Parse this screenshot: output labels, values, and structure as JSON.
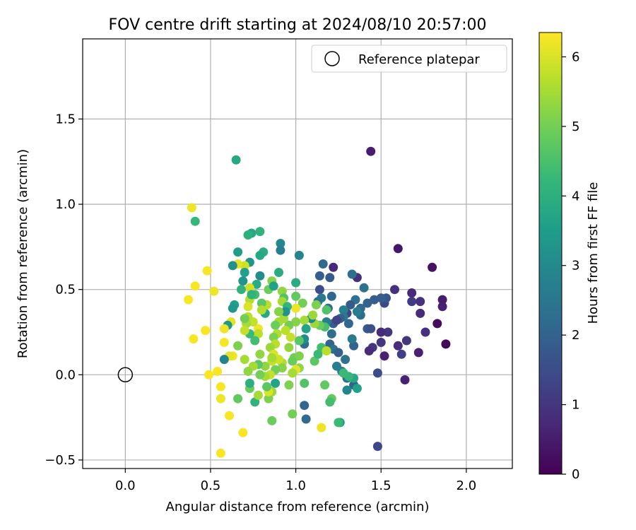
{
  "chart_data": {
    "type": "scatter",
    "title": "FOV centre drift starting at 2024/08/10 20:57:00",
    "xlabel": "Angular distance from reference (arcmin)",
    "ylabel": "Rotation from reference (arcmin)",
    "xlim": [
      -0.25,
      2.27
    ],
    "ylim": [
      -0.55,
      1.97
    ],
    "x_ticks": [
      0.0,
      0.5,
      1.0,
      1.5,
      2.0
    ],
    "x_tick_labels": [
      "0.0",
      "0.5",
      "1.0",
      "1.5",
      "2.0"
    ],
    "y_ticks": [
      -0.5,
      0.0,
      0.5,
      1.0,
      1.5
    ],
    "y_tick_labels": [
      "−0.5",
      "0.0",
      "0.5",
      "1.0",
      "1.5"
    ],
    "grid": true,
    "legend": {
      "placement": "top-right",
      "entries": [
        "Reference platepar"
      ]
    },
    "reference_point": {
      "name": "Reference platepar",
      "x": 0.0,
      "y": 0.0
    },
    "colorbar": {
      "label": "Hours from first FF file",
      "colormap": "viridis",
      "range": [
        0,
        6.35
      ],
      "ticks": [
        0,
        1,
        2,
        3,
        4,
        5,
        6
      ],
      "tick_labels": [
        "0",
        "1",
        "2",
        "3",
        "4",
        "5",
        "6"
      ]
    },
    "points_columns": [
      "x",
      "y",
      "hours"
    ],
    "points": [
      [
        1.44,
        1.31,
        0.5
      ],
      [
        1.6,
        0.74,
        0.4
      ],
      [
        1.8,
        0.63,
        0.3
      ],
      [
        1.83,
        0.3,
        0.2
      ],
      [
        1.88,
        0.18,
        0.1
      ],
      [
        1.86,
        0.44,
        0.5
      ],
      [
        1.86,
        0.4,
        0.6
      ],
      [
        1.76,
        0.25,
        0.9
      ],
      [
        1.72,
        0.13,
        0.6
      ],
      [
        1.73,
        0.36,
        0.8
      ],
      [
        1.73,
        0.43,
        0.9
      ],
      [
        1.68,
        0.48,
        0.8
      ],
      [
        1.68,
        0.43,
        1.1
      ],
      [
        1.64,
        -0.03,
        0.6
      ],
      [
        1.65,
        0.2,
        1.0
      ],
      [
        1.62,
        0.12,
        1.2
      ],
      [
        1.6,
        0.17,
        0.8
      ],
      [
        1.58,
        0.5,
        0.9
      ],
      [
        1.54,
        0.25,
        1.0
      ],
      [
        1.52,
        0.11,
        0.6
      ],
      [
        1.5,
        0.25,
        0.8
      ],
      [
        1.5,
        0.19,
        1.0
      ],
      [
        1.48,
        0.01,
        1.5
      ],
      [
        1.48,
        -0.42,
        1.4
      ],
      [
        1.45,
        0.16,
        1.0
      ],
      [
        1.43,
        0.14,
        0.8
      ],
      [
        1.42,
        0.27,
        1.8
      ],
      [
        1.44,
        0.27,
        1.6
      ],
      [
        1.52,
        0.42,
        1.4
      ],
      [
        1.53,
        0.45,
        1.7
      ],
      [
        1.5,
        0.45,
        1.9
      ],
      [
        1.46,
        0.44,
        1.9
      ],
      [
        1.42,
        0.42,
        2.0
      ],
      [
        1.38,
        0.39,
        2.2
      ],
      [
        1.36,
        0.57,
        0.9
      ],
      [
        1.33,
        0.59,
        2.3
      ],
      [
        1.4,
        0.51,
        2.4
      ],
      [
        1.38,
        0.35,
        2.3
      ],
      [
        1.36,
        0.37,
        2.7
      ],
      [
        1.35,
        0.44,
        2.4
      ],
      [
        1.32,
        0.41,
        1.8
      ],
      [
        1.3,
        0.36,
        1.3
      ],
      [
        1.28,
        0.38,
        2.8
      ],
      [
        1.31,
        0.3,
        2.1
      ],
      [
        1.28,
        0.34,
        2.5
      ],
      [
        1.26,
        0.33,
        2.0
      ],
      [
        1.22,
        0.63,
        0.7
      ],
      [
        1.2,
        0.57,
        1.8
      ],
      [
        1.16,
        0.65,
        2.2
      ],
      [
        1.14,
        0.58,
        1.9
      ],
      [
        1.14,
        0.5,
        1.5
      ],
      [
        1.15,
        0.45,
        2.6
      ],
      [
        1.13,
        0.43,
        2.4
      ],
      [
        1.21,
        0.46,
        2.1
      ],
      [
        1.19,
        0.39,
        2.3
      ],
      [
        1.22,
        0.3,
        1.9
      ],
      [
        1.21,
        0.24,
        2.3
      ],
      [
        1.24,
        0.32,
        1.3
      ],
      [
        1.18,
        0.31,
        2.7
      ],
      [
        1.2,
        0.18,
        2.0
      ],
      [
        1.22,
        0.15,
        2.4
      ],
      [
        1.25,
        0.13,
        1.9
      ],
      [
        1.34,
        0.17,
        2.0
      ],
      [
        1.33,
        0.21,
        2.6
      ],
      [
        1.29,
        0.09,
        2.4
      ],
      [
        1.27,
        0.02,
        2.6
      ],
      [
        1.3,
        -0.02,
        2.3
      ],
      [
        1.34,
        -0.06,
        2.0
      ],
      [
        1.3,
        -0.09,
        2.9
      ],
      [
        1.36,
        -0.08,
        3.6
      ],
      [
        1.34,
        -0.02,
        3.8
      ],
      [
        1.31,
        -0.01,
        4.2
      ],
      [
        1.28,
        0.01,
        4.3
      ],
      [
        1.24,
        0.05,
        2.7
      ],
      [
        1.26,
        -0.28,
        3.5
      ],
      [
        1.25,
        -0.28,
        4.3
      ],
      [
        1.21,
        -0.14,
        4.8
      ],
      [
        1.2,
        -0.16,
        4.4
      ],
      [
        1.17,
        -0.06,
        4.8
      ],
      [
        1.11,
        0.08,
        4.7
      ],
      [
        1.13,
        0.12,
        4.3
      ],
      [
        1.15,
        0.16,
        4.4
      ],
      [
        1.18,
        0.14,
        5.7
      ],
      [
        1.17,
        0.28,
        4.5
      ],
      [
        1.18,
        0.38,
        4.6
      ],
      [
        1.15,
        -0.31,
        6.2
      ],
      [
        1.14,
        0.29,
        4.9
      ],
      [
        1.11,
        0.3,
        5.4
      ],
      [
        1.09,
        0.33,
        3.0
      ],
      [
        1.04,
        0.42,
        5.0
      ],
      [
        1.12,
        0.41,
        5.1
      ],
      [
        1.1,
        0.35,
        5.4
      ],
      [
        1.05,
        0.32,
        5.5
      ],
      [
        1.05,
        0.18,
        2.3
      ],
      [
        1.05,
        0.21,
        3.1
      ],
      [
        1.06,
        0.27,
        3.7
      ],
      [
        1.05,
        -0.18,
        2.1
      ],
      [
        1.06,
        -0.26,
        2.2
      ],
      [
        1.05,
        -0.05,
        4.6
      ],
      [
        1.02,
        0.04,
        5.3
      ],
      [
        1.0,
        0.03,
        6.1
      ],
      [
        0.99,
        0.1,
        4.9
      ],
      [
        1.02,
        0.2,
        4.7
      ],
      [
        1.02,
        0.11,
        5.1
      ],
      [
        1.0,
        0.39,
        6.2
      ],
      [
        1.0,
        0.46,
        4.8
      ],
      [
        1.0,
        0.31,
        5.2
      ],
      [
        1.0,
        0.54,
        3.9
      ],
      [
        1.02,
        0.7,
        2.9
      ],
      [
        0.96,
        0.16,
        5.3
      ],
      [
        0.97,
        0.22,
        5.8
      ],
      [
        0.98,
        0.08,
        4.9
      ],
      [
        0.98,
        0.01,
        5.5
      ],
      [
        0.98,
        -0.23,
        5.0
      ],
      [
        0.96,
        -0.06,
        5.1
      ],
      [
        0.96,
        0.29,
        5.0
      ],
      [
        0.93,
        0.33,
        5.5
      ],
      [
        0.94,
        0.26,
        5.7
      ],
      [
        0.92,
        0.07,
        5.6
      ],
      [
        0.9,
        0.09,
        5.9
      ],
      [
        0.92,
        0.04,
        5.2
      ],
      [
        0.91,
        0.77,
        3.0
      ],
      [
        0.91,
        0.73,
        2.7
      ],
      [
        0.9,
        0.6,
        3.9
      ],
      [
        0.92,
        0.49,
        5.3
      ],
      [
        0.93,
        0.45,
        4.6
      ],
      [
        0.92,
        0.43,
        5.5
      ],
      [
        0.95,
        0.4,
        4.2
      ],
      [
        0.94,
        0.37,
        3.3
      ],
      [
        0.9,
        0.37,
        5.2
      ],
      [
        0.9,
        0.31,
        5.5
      ],
      [
        0.88,
        0.29,
        4.9
      ],
      [
        0.89,
        0.24,
        5.6
      ],
      [
        0.87,
        0.22,
        5.1
      ],
      [
        0.88,
        0.18,
        5.7
      ],
      [
        0.85,
        0.16,
        5.4
      ],
      [
        0.87,
        0.12,
        6.0
      ],
      [
        0.86,
        0.08,
        5.8
      ],
      [
        0.86,
        0.1,
        5.5
      ],
      [
        0.88,
        0.03,
        5.0
      ],
      [
        0.88,
        -0.05,
        3.7
      ],
      [
        0.86,
        -0.27,
        4.9
      ],
      [
        0.84,
        -0.14,
        5.1
      ],
      [
        0.86,
        -0.1,
        5.4
      ],
      [
        0.84,
        -0.1,
        6.0
      ],
      [
        0.83,
        -0.07,
        4.7
      ],
      [
        0.82,
        0.05,
        5.3
      ],
      [
        0.85,
        0.0,
        5.8
      ],
      [
        0.82,
        -0.01,
        5.5
      ],
      [
        0.79,
        0.0,
        5.0
      ],
      [
        0.82,
        0.36,
        3.8
      ],
      [
        0.83,
        0.41,
        5.7
      ],
      [
        0.84,
        0.5,
        4.9
      ],
      [
        0.86,
        0.55,
        5.2
      ],
      [
        0.87,
        0.52,
        3.6
      ],
      [
        0.8,
        0.42,
        4.7
      ],
      [
        0.8,
        0.38,
        5.6
      ],
      [
        0.81,
        0.72,
        3.9
      ],
      [
        0.79,
        0.84,
        4.1
      ],
      [
        0.79,
        0.7,
        3.8
      ],
      [
        0.79,
        0.58,
        3.1
      ],
      [
        0.77,
        0.53,
        3.9
      ],
      [
        0.76,
        0.47,
        4.4
      ],
      [
        0.78,
        0.27,
        6.2
      ],
      [
        0.78,
        0.24,
        5.7
      ],
      [
        0.75,
        0.31,
        5.8
      ],
      [
        0.76,
        0.2,
        4.4
      ],
      [
        0.78,
        0.06,
        4.7
      ],
      [
        0.79,
        0.12,
        5.3
      ],
      [
        0.75,
        0.05,
        5.5
      ],
      [
        0.76,
        -0.16,
        4.1
      ],
      [
        0.78,
        -0.12,
        5.5
      ],
      [
        0.73,
        -0.08,
        4.9
      ],
      [
        0.73,
        -0.05,
        4.0
      ],
      [
        0.72,
        0.02,
        5.3
      ],
      [
        0.73,
        0.24,
        4.3
      ],
      [
        0.73,
        0.44,
        5.6
      ],
      [
        0.73,
        0.51,
        5.9
      ],
      [
        0.74,
        0.47,
        4.1
      ],
      [
        0.72,
        0.4,
        6.0
      ],
      [
        0.72,
        0.34,
        5.7
      ],
      [
        0.71,
        0.3,
        5.5
      ],
      [
        0.73,
        0.66,
        3.3
      ],
      [
        0.74,
        0.83,
        3.8
      ],
      [
        0.72,
        0.82,
        4.0
      ],
      [
        0.7,
        0.64,
        5.9
      ],
      [
        0.7,
        0.6,
        3.6
      ],
      [
        0.69,
        0.55,
        3.3
      ],
      [
        0.68,
        0.5,
        4.1
      ],
      [
        0.7,
        0.33,
        5.0
      ],
      [
        0.7,
        0.26,
        5.8
      ],
      [
        0.7,
        0.09,
        5.5
      ],
      [
        0.69,
        -0.34,
        6.3
      ],
      [
        0.66,
        0.17,
        5.1
      ],
      [
        0.66,
        -0.14,
        4.8
      ],
      [
        0.66,
        0.72,
        3.5
      ],
      [
        0.66,
        0.65,
        6.1
      ],
      [
        0.65,
        1.26,
        3.8
      ],
      [
        0.64,
        0.41,
        3.6
      ],
      [
        0.63,
        0.39,
        3.4
      ],
      [
        0.63,
        0.64,
        3.2
      ],
      [
        0.62,
        0.31,
        6.1
      ],
      [
        0.63,
        0.11,
        6.2
      ],
      [
        0.61,
        0.11,
        6.1
      ],
      [
        0.61,
        -0.24,
        6.3
      ],
      [
        0.6,
        0.29,
        3.4
      ],
      [
        0.58,
        0.09,
        2.9
      ],
      [
        0.58,
        0.19,
        6.3
      ],
      [
        0.58,
        0.27,
        6.2
      ],
      [
        0.56,
        -0.14,
        6.2
      ],
      [
        0.56,
        -0.07,
        6.3
      ],
      [
        0.54,
        0.02,
        6.3
      ],
      [
        0.56,
        -0.46,
        6.3
      ],
      [
        0.52,
        0.49,
        6.2
      ],
      [
        0.49,
        0.0,
        6.3
      ],
      [
        0.48,
        0.61,
        6.3
      ],
      [
        0.47,
        0.26,
        6.3
      ],
      [
        0.41,
        0.9,
        4.2
      ],
      [
        0.41,
        0.52,
        6.3
      ],
      [
        0.4,
        0.21,
        6.3
      ],
      [
        0.39,
        0.98,
        6.2
      ],
      [
        0.37,
        0.44,
        6.3
      ]
    ]
  }
}
